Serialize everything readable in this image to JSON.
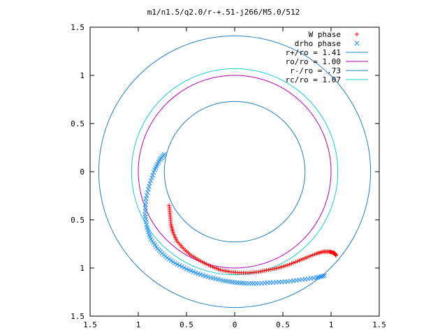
{
  "chart_data": {
    "type": "scatter",
    "title": "m1/n1.5/q2.0/r-+.51-j266/M5.0/512",
    "xlabel": "",
    "ylabel": "",
    "xlim": [
      -1.5,
      1.5
    ],
    "ylim": [
      -1.5,
      1.5
    ],
    "x_ticks": [
      -1.5,
      -1,
      -0.5,
      0,
      0.5,
      1,
      1.5
    ],
    "y_ticks": [
      -1.5,
      -1,
      -0.5,
      0,
      0.5,
      1,
      1.5
    ],
    "x_tick_labels": [
      "1.5",
      "1",
      "0.5",
      "0",
      "0.5",
      "1",
      "1.5"
    ],
    "y_tick_labels": [
      "1.5",
      "1",
      "0.5",
      "0",
      "0.5",
      "1",
      "1.5"
    ],
    "grid": false,
    "legend_position": "top-right",
    "colors": {
      "w_phase": "#ff0000",
      "drho_phase": "#1e90ff",
      "r_plus": "#1f7fc0",
      "r_o": "#b000b0",
      "r_minus": "#1f7fc0",
      "r_c": "#19cfcf"
    },
    "circles": [
      {
        "name": "r+/ro = 1.41",
        "radius": 1.41,
        "color_key": "r_plus"
      },
      {
        "name": "ro/ro = 1.00",
        "radius": 1.0,
        "color_key": "r_o"
      },
      {
        "name": "r-/ro = .73",
        "radius": 0.73,
        "color_key": "r_minus"
      },
      {
        "name": "rc/ro = 1.07",
        "radius": 1.07,
        "color_key": "r_c"
      }
    ],
    "series": [
      {
        "name": "W phase",
        "marker": "plus",
        "color_key": "w_phase",
        "x": [
          -0.68,
          -0.67,
          -0.66,
          -0.64,
          -0.6,
          -0.53,
          -0.45,
          -0.35,
          -0.25,
          -0.15,
          -0.05,
          0.05,
          0.15,
          0.25,
          0.35,
          0.45,
          0.55,
          0.65,
          0.75,
          0.85,
          0.92,
          0.98,
          1.02,
          1.04,
          1.05
        ],
        "y": [
          -0.35,
          -0.45,
          -0.55,
          -0.63,
          -0.72,
          -0.8,
          -0.87,
          -0.93,
          -0.98,
          -1.02,
          -1.04,
          -1.05,
          -1.05,
          -1.04,
          -1.02,
          -1.0,
          -0.97,
          -0.93,
          -0.89,
          -0.85,
          -0.83,
          -0.83,
          -0.84,
          -0.85,
          -0.87
        ]
      },
      {
        "name": "drho phase",
        "marker": "cross",
        "color_key": "drho_phase",
        "x": [
          -0.73,
          -0.78,
          -0.83,
          -0.88,
          -0.92,
          -0.93,
          -0.91,
          -0.87,
          -0.8,
          -0.72,
          -0.62,
          -0.5,
          -0.38,
          -0.25,
          -0.12,
          0.0,
          0.12,
          0.25,
          0.4,
          0.55,
          0.7,
          0.85,
          0.93
        ],
        "y": [
          0.18,
          0.12,
          0.02,
          -0.12,
          -0.28,
          -0.44,
          -0.58,
          -0.7,
          -0.8,
          -0.88,
          -0.95,
          -1.01,
          -1.06,
          -1.1,
          -1.13,
          -1.15,
          -1.16,
          -1.16,
          -1.15,
          -1.14,
          -1.12,
          -1.1,
          -1.08
        ]
      }
    ]
  }
}
